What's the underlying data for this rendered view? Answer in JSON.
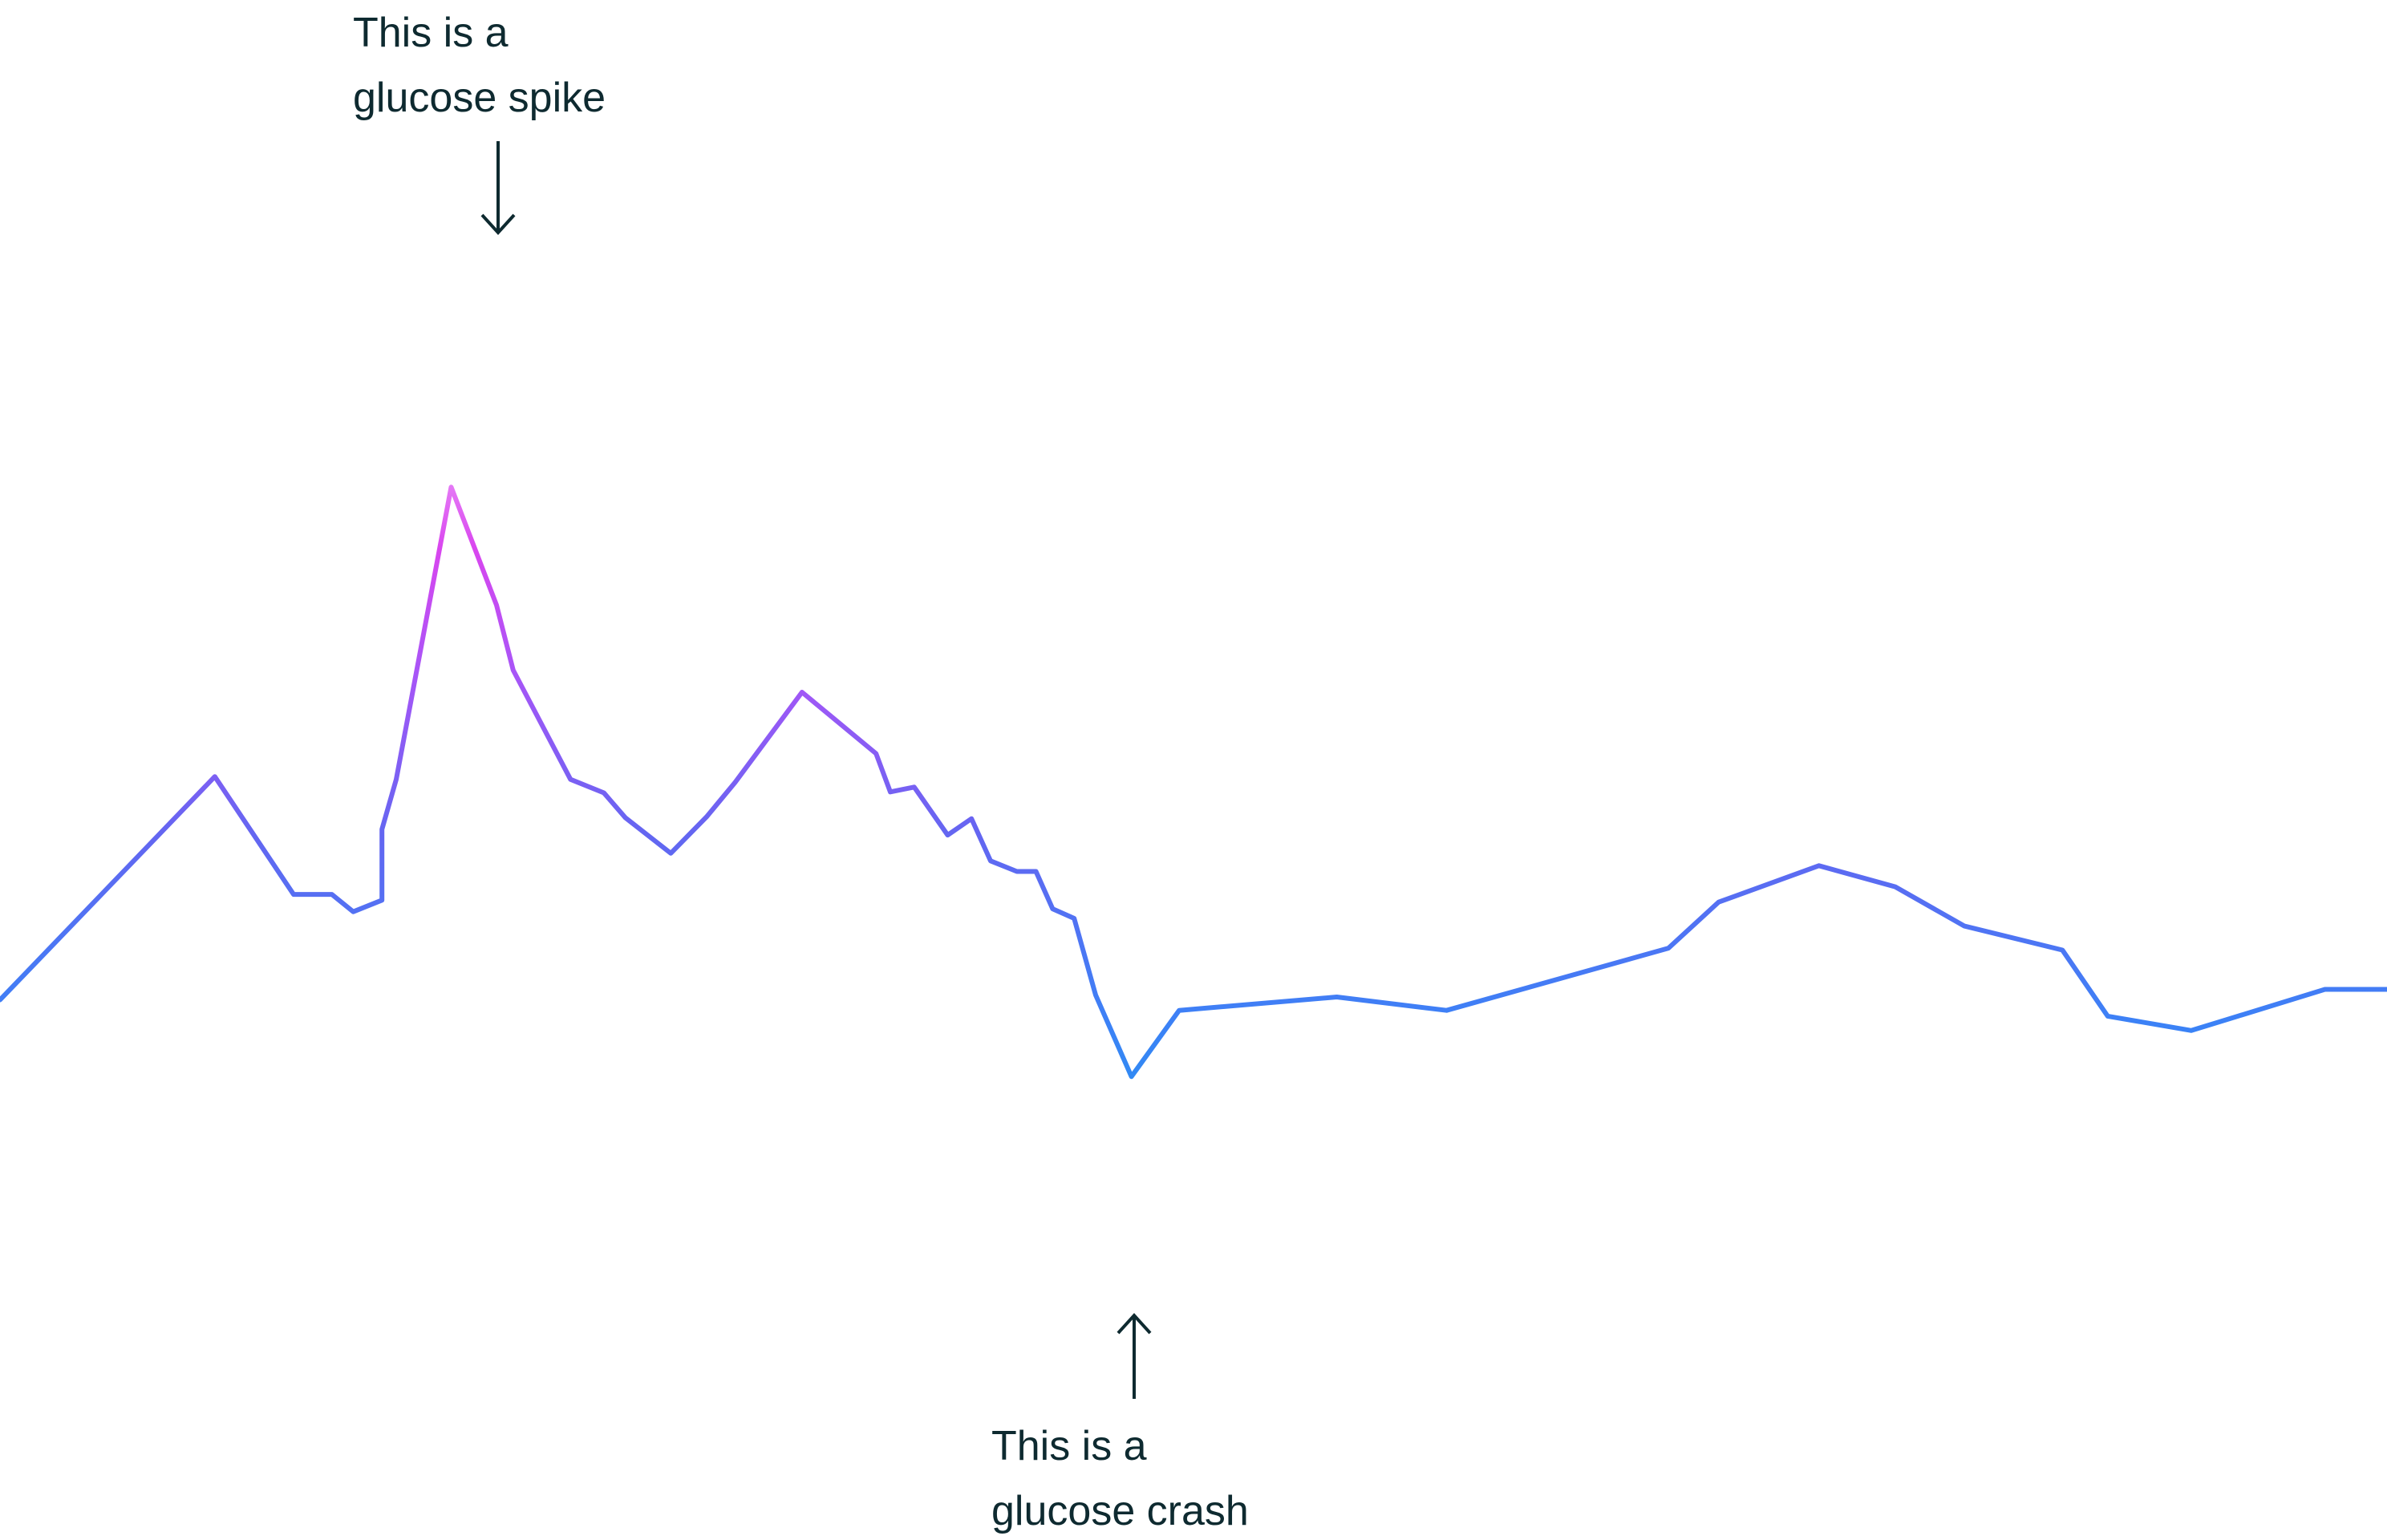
{
  "colors": {
    "text": "#0e2a30",
    "arrow": "#0e2a30",
    "background": "#ffffff",
    "line_gradient_stops": [
      "#0ea5e9",
      "#3b82f6",
      "#6366f1",
      "#a855f7",
      "#d946ef",
      "#f0abfc",
      "#fde68a"
    ]
  },
  "chart_data": {
    "type": "line",
    "title": "",
    "xlabel": "",
    "ylabel": "",
    "grid": false,
    "legend": "none",
    "axes_visible": false,
    "xlim": [
      0,
      100
    ],
    "ylim": [
      0,
      100
    ],
    "series": [
      {
        "x": [
          0,
          9.0,
          12.3,
          13.9,
          14.8,
          16.0,
          16.0,
          16.6,
          18.9,
          20.8,
          21.5,
          23.9,
          25.3,
          26.2,
          28.1,
          29.6,
          30.8,
          33.6,
          36.7,
          37.3,
          38.3,
          39.7,
          40.7,
          41.5,
          42.6,
          43.4,
          44.1,
          45.0,
          45.9,
          47.4,
          49.4,
          56.0,
          60.6,
          69.9,
          72.0,
          76.2,
          79.4,
          82.3,
          86.4,
          88.3,
          91.8,
          97.4,
          100
        ],
        "y": [
          27.9,
          51.2,
          38.9,
          38.9,
          37.1,
          38.3,
          45.7,
          50.9,
          81.4,
          69.1,
          62.3,
          50.9,
          49.5,
          46.9,
          43.2,
          47.0,
          50.6,
          60.0,
          53.6,
          49.6,
          50.1,
          45.1,
          46.8,
          42.4,
          41.3,
          41.3,
          37.4,
          36.4,
          28.4,
          19.9,
          26.8,
          28.2,
          26.8,
          33.3,
          38.1,
          41.9,
          39.7,
          35.6,
          33.1,
          26.2,
          24.7,
          29.0,
          29.0
        ]
      }
    ],
    "annotations": [
      {
        "name": "spike",
        "lines": [
          "This is a",
          "glucose spike"
        ],
        "x": 20.8,
        "y": 81.4,
        "arrow": "down"
      },
      {
        "name": "crash",
        "lines": [
          "This is a",
          "glucose crash"
        ],
        "x": 47.4,
        "y": 19.9,
        "arrow": "up"
      }
    ]
  }
}
